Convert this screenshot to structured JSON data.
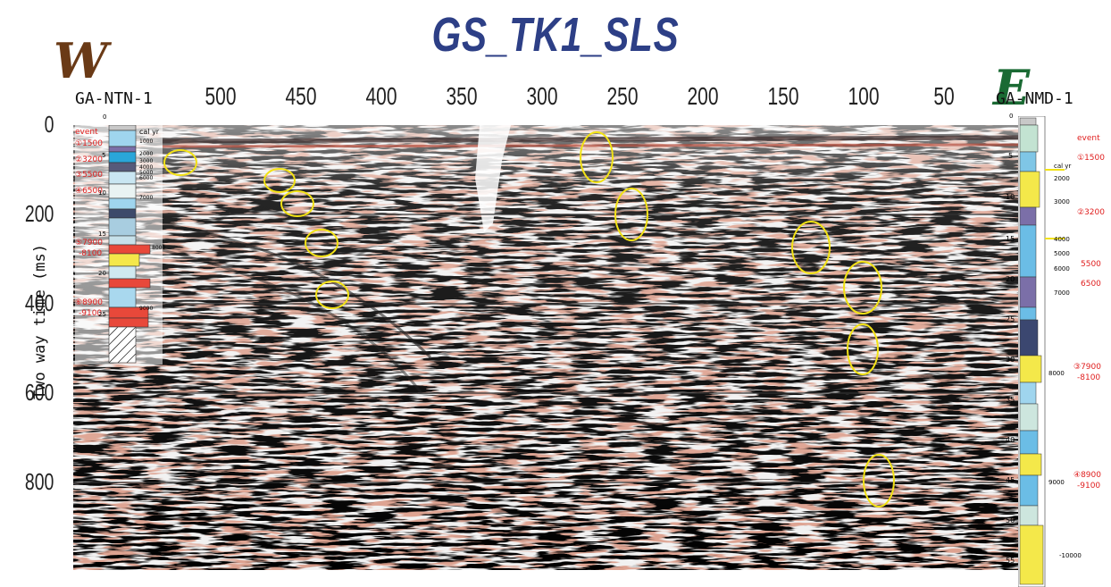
{
  "title": "GS_TK1_SLS",
  "direction_west": "W",
  "direction_east": "E",
  "colors": {
    "title": "#2d3f86",
    "west": "#6a3a16",
    "east": "#1a6a33",
    "event": "#e02020",
    "ellipse": "#f2e215"
  },
  "wells": {
    "left": "GA-NTN-1",
    "right": "GA-NMD-1"
  },
  "x_ticks": [
    "500",
    "450",
    "400",
    "350",
    "300",
    "250",
    "200",
    "150",
    "100",
    "50"
  ],
  "y_ticks": [
    "0",
    "200",
    "400",
    "600",
    "800"
  ],
  "y_axis_label": "Two way time (ms)",
  "left_log": {
    "event_header": "event",
    "cal_yr_header": "cal yr",
    "events": [
      "①1500",
      "②3200",
      "③5500",
      "④6500",
      "⑤7900",
      "-8100",
      "⑥8900",
      "-9100"
    ],
    "depths": [
      "0",
      "5",
      "10",
      "15",
      "20",
      "25"
    ],
    "ages": [
      "1000",
      "2000",
      "3000",
      "4000",
      "5000",
      "6000",
      "7000",
      "8000",
      "9000"
    ]
  },
  "right_log": {
    "event_header": "event",
    "cal_yr_header": "cal yr",
    "events": [
      "①1500",
      "②3200",
      "5500",
      "6500",
      "③7900",
      "-8100",
      "④8900",
      "-9100"
    ],
    "depths": [
      "0",
      "5",
      "10",
      "15",
      "20",
      "25",
      "30",
      "35",
      "40",
      "45",
      "50",
      "55"
    ],
    "ages": [
      "2000",
      "3000",
      "4000",
      "5000",
      "6000",
      "7000",
      "8000",
      "9000",
      "-10000"
    ]
  }
}
